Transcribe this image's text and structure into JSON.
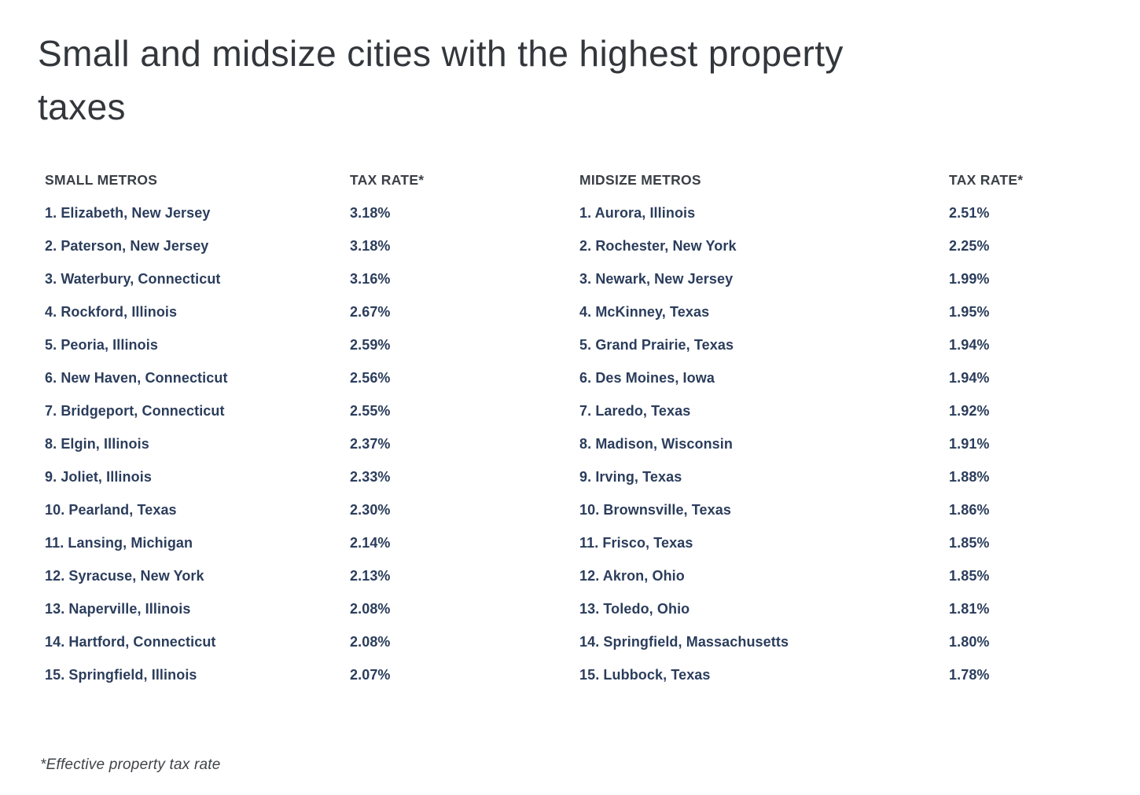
{
  "title": "Small and midsize cities with the highest property\ntaxes",
  "footnote": "*Effective property tax rate",
  "colors": {
    "background": "#ffffff",
    "title_text": "#33373c",
    "header_text": "#3a3f46",
    "row_text": "#2b3d5c",
    "footnote_text": "#3f4449"
  },
  "chart_data": {
    "type": "table",
    "title": "Small and midsize cities with the highest property taxes",
    "footnote": "*Effective property tax rate",
    "tables": [
      {
        "name": "small-metros",
        "columns": [
          "SMALL METROS",
          "TAX RATE*"
        ],
        "rows": [
          {
            "label": "1. Elizabeth, New Jersey",
            "rate": "3.18%",
            "rate_value": 3.18
          },
          {
            "label": "2. Paterson, New Jersey",
            "rate": "3.18%",
            "rate_value": 3.18
          },
          {
            "label": "3. Waterbury, Connecticut",
            "rate": "3.16%",
            "rate_value": 3.16
          },
          {
            "label": "4. Rockford, Illinois",
            "rate": "2.67%",
            "rate_value": 2.67
          },
          {
            "label": "5. Peoria, Illinois",
            "rate": "2.59%",
            "rate_value": 2.59
          },
          {
            "label": "6. New Haven, Connecticut",
            "rate": "2.56%",
            "rate_value": 2.56
          },
          {
            "label": "7. Bridgeport, Connecticut",
            "rate": "2.55%",
            "rate_value": 2.55
          },
          {
            "label": "8. Elgin, Illinois",
            "rate": "2.37%",
            "rate_value": 2.37
          },
          {
            "label": "9. Joliet, Illinois",
            "rate": "2.33%",
            "rate_value": 2.33
          },
          {
            "label": "10. Pearland, Texas",
            "rate": "2.30%",
            "rate_value": 2.3
          },
          {
            "label": "11. Lansing, Michigan",
            "rate": "2.14%",
            "rate_value": 2.14
          },
          {
            "label": "12. Syracuse, New York",
            "rate": "2.13%",
            "rate_value": 2.13
          },
          {
            "label": "13. Naperville, Illinois",
            "rate": "2.08%",
            "rate_value": 2.08
          },
          {
            "label": "14. Hartford, Connecticut",
            "rate": "2.08%",
            "rate_value": 2.08
          },
          {
            "label": "15. Springfield, Illinois",
            "rate": "2.07%",
            "rate_value": 2.07
          }
        ]
      },
      {
        "name": "midsize-metros",
        "columns": [
          "MIDSIZE METROS",
          "TAX RATE*"
        ],
        "rows": [
          {
            "label": "1. Aurora, Illinois",
            "rate": "2.51%",
            "rate_value": 2.51
          },
          {
            "label": "2. Rochester, New York",
            "rate": "2.25%",
            "rate_value": 2.25
          },
          {
            "label": "3. Newark, New Jersey",
            "rate": "1.99%",
            "rate_value": 1.99
          },
          {
            "label": "4. McKinney, Texas",
            "rate": "1.95%",
            "rate_value": 1.95
          },
          {
            "label": "5. Grand Prairie, Texas",
            "rate": "1.94%",
            "rate_value": 1.94
          },
          {
            "label": "6. Des Moines, Iowa",
            "rate": "1.94%",
            "rate_value": 1.94
          },
          {
            "label": "7. Laredo, Texas",
            "rate": "1.92%",
            "rate_value": 1.92
          },
          {
            "label": "8. Madison, Wisconsin",
            "rate": "1.91%",
            "rate_value": 1.91
          },
          {
            "label": "9. Irving, Texas",
            "rate": "1.88%",
            "rate_value": 1.88
          },
          {
            "label": "10. Brownsville, Texas",
            "rate": "1.86%",
            "rate_value": 1.86
          },
          {
            "label": "11. Frisco, Texas",
            "rate": "1.85%",
            "rate_value": 1.85
          },
          {
            "label": "12. Akron, Ohio",
            "rate": "1.85%",
            "rate_value": 1.85
          },
          {
            "label": "13. Toledo, Ohio",
            "rate": "1.81%",
            "rate_value": 1.81
          },
          {
            "label": "14. Springfield, Massachusetts",
            "rate": "1.80%",
            "rate_value": 1.8
          },
          {
            "label": "15. Lubbock, Texas",
            "rate": "1.78%",
            "rate_value": 1.78
          }
        ]
      }
    ]
  }
}
